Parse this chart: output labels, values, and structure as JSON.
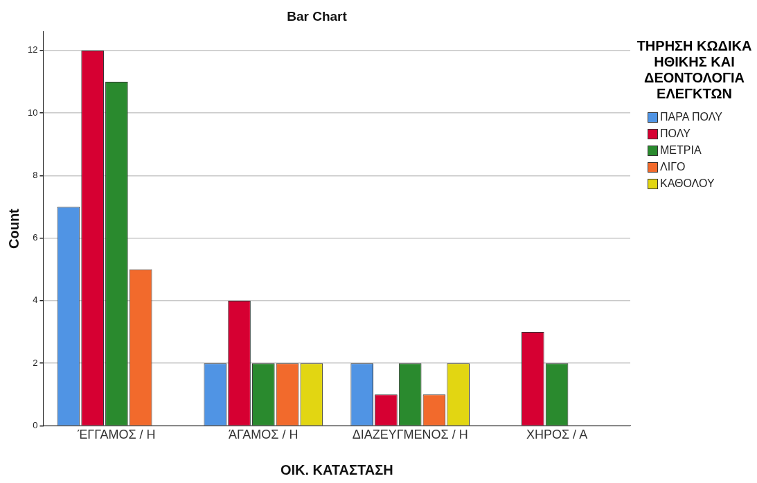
{
  "chart_data": {
    "type": "bar",
    "title": "Bar Chart",
    "xlabel": "ΟΙΚ. ΚΑΤΑΣΤΑΣΗ",
    "ylabel": "Count",
    "legend_title": "ΤΗΡΗΣΗ ΚΩΔΙΚΑ ΗΘΙΚΗΣ ΚΑΙ ΔΕΟΝΤΟΛΟΓΙΑ ΕΛΕΓΚΤΩΝ",
    "categories": [
      "ΈΓΓΑΜΟΣ / Η",
      "ΆΓΑΜΟΣ / Η",
      "ΔΙΑΖΕΥΓΜΕΝΟΣ / Η",
      "ΧΗΡΟΣ / Α"
    ],
    "series": [
      {
        "name": "ΠΑΡΑ ΠΟΛΥ",
        "color": "#5094e4",
        "values": [
          7,
          2,
          2,
          null
        ]
      },
      {
        "name": "ΠΟΛΥ",
        "color": "#d60032",
        "values": [
          12,
          4,
          1,
          3
        ]
      },
      {
        "name": "ΜΕΤΡΙΑ",
        "color": "#2a8a2e",
        "values": [
          11,
          2,
          2,
          2
        ]
      },
      {
        "name": "ΛΙΓΟ",
        "color": "#f26a2c",
        "values": [
          5,
          2,
          1,
          null
        ]
      },
      {
        "name": "ΚΑΘΟΛΟΥ",
        "color": "#e2d612",
        "values": [
          null,
          2,
          2,
          null
        ]
      }
    ],
    "ylim": [
      0,
      12.6
    ],
    "yticks": [
      0,
      2,
      4,
      6,
      8,
      10,
      12
    ],
    "grid": "y",
    "legend": "right"
  }
}
